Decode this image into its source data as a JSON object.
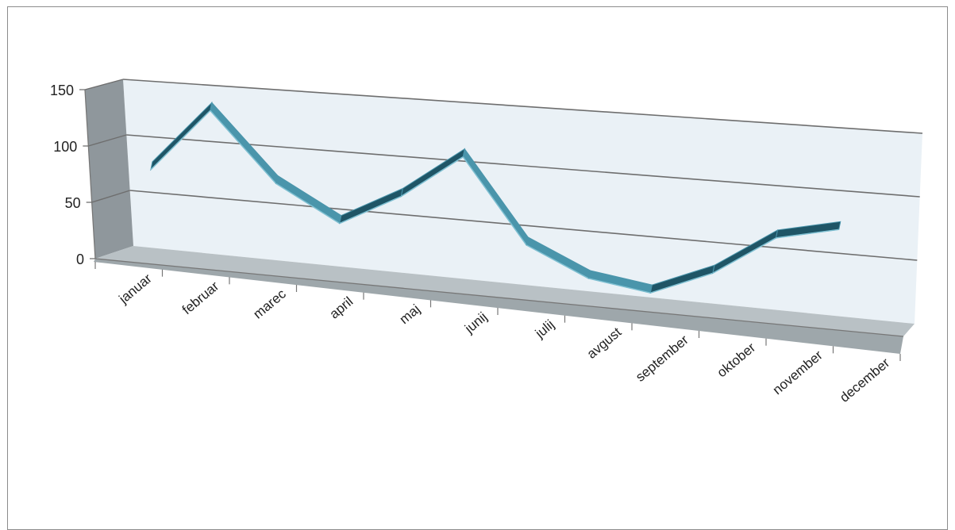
{
  "chart_data": {
    "type": "line",
    "style": "3d",
    "categories": [
      "januar",
      "februar",
      "marec",
      "april",
      "maj",
      "junij",
      "julij",
      "avgust",
      "september",
      "oktober",
      "november",
      "december"
    ],
    "series": [
      {
        "values": [
          75,
          132,
          72,
          42,
          70,
          108,
          38,
          15,
          8,
          29,
          62,
          73
        ]
      }
    ],
    "y_ticks": [
      "0",
      "50",
      "100",
      "150"
    ],
    "ylim": [
      0,
      150
    ],
    "grid": true,
    "legend": "none",
    "colors": {
      "line_front": "#4a95ab",
      "line_top": "#2f7488",
      "line_side": "#1f5566",
      "back_wall": "#eaf1f6",
      "left_wall": "#8f979c",
      "floor_top": "#b9c1c5",
      "floor_front": "#9ea7ab",
      "gridline": "#6e6e6e"
    }
  }
}
